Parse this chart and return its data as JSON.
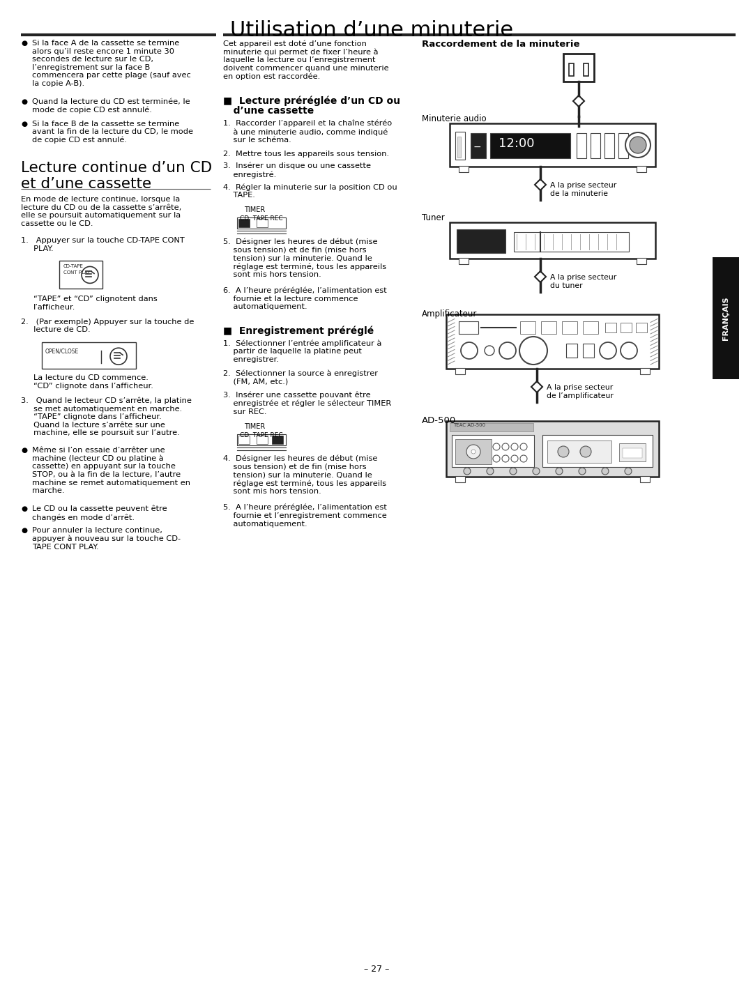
{
  "title": "Utilisation d’une minuterie",
  "page_number": "– 27 –",
  "bg_color": "#ffffff",
  "left_col_bullets_top": [
    "Si la face A de la cassette se termine\nalors qu’il reste encore 1 minute 30\nsecondes de lecture sur le CD,\nl’enregistrement sur la face B\ncommencera par cette plage (sauf avec\nla copie A-B).",
    "Quand la lecture du CD est terminée, le\nmode de copie CD est annulé.",
    "Si la face B de la cassette se termine\navant la fin de la lecture du CD, le mode\nde copie CD est annulé."
  ],
  "section1_title": "Lecture continue d’un CD\net d’une cassette",
  "section1_body": "En mode de lecture continue, lorsque la\nlecture du CD ou de la cassette s’arrête,\nelle se poursuit automatiquement sur la\ncassette ou le CD.",
  "section1_step1": "1.   Appuyer sur la touche CD-TAPE CONT\n     PLAY.",
  "section1_caption1": "“TAPE” et “CD” clignotent dans\nl’afficheur.",
  "section1_step2": "2.   (Par exemple) Appuyer sur la touche de\n     lecture de CD.",
  "section1_caption2": "La lecture du CD commence.\n“CD” clignote dans l’afficheur.",
  "section1_step3": "3.   Quand le lecteur CD s’arrête, la platine\n     se met automatiquement en marche.\n     “TAPE” clignote dans l’afficheur.\n     Quand la lecture s’arrête sur une\n     machine, elle se poursuit sur l’autre.",
  "section1_bullets2": [
    "Même si l’on essaie d’arrêter une\nmachine (lecteur CD ou platine à\ncassette) en appuyant sur la touche\nSTOP, ou à la fin de la lecture, l’autre\nmachine se remet automatiquement en\nmarche.",
    "Le CD ou la cassette peuvent être\nchangés en mode d’arrêt.",
    "Pour annuler la lecture continue,\nappuyer à nouveau sur la touche CD-\nTAPE CONT PLAY."
  ],
  "mid_col_intro": "Cet appareil est doté d’une fonction\nminuterie qui permet de fixer l’heure à\nlaquelle la lecture ou l’enregistrement\ndoivent commencer quand une minuterie\nen option est raccordée.",
  "section2_title_line1": "■  Lecture préréglée d’un CD ou",
  "section2_title_line2": "   d’une cassette",
  "section2_steps": [
    "1.  Raccorder l’appareil et la chaîne stéréo\n    à une minuterie audio, comme indiqué\n    sur le schéma.",
    "2.  Mettre tous les appareils sous tension.",
    "3.  Insérer un disque ou une cassette\n    enregistré.",
    "4.  Régler la minuterie sur la position CD ou\n    TAPE."
  ],
  "section2_steps_after": [
    "5.  Désigner les heures de début (mise\n    sous tension) et de fin (mise hors\n    tension) sur la minuterie. Quand le\n    réglage est terminé, tous les appareils\n    sont mis hors tension.",
    "6.  A l’heure préréglée, l’alimentation est\n    fournie et la lecture commence\n    automatiquement."
  ],
  "section3_title": "■  Enregistrement préréglé",
  "section3_steps": [
    "1.  Sélectionner l’entrée amplificateur à\n    partir de laquelle la platine peut\n    enregistrer.",
    "2.  Sélectionner la source à enregistrer\n    (FM, AM, etc.)",
    "3.  Insérer une cassette pouvant être\n    enregistrée et régler le sélecteur TIMER\n    sur REC."
  ],
  "section3_steps_after": [
    "4.  Désigner les heures de début (mise\n    sous tension) et de fin (mise hors\n    tension) sur la minuterie. Quand le\n    réglage est terminé, tous les appareils\n    sont mis hors tension.",
    "5.  A l’heure préréglée, l’alimentation est\n    fournie et l’enregistrement commence\n    automatiquement."
  ],
  "right_col_title": "Raccordement de la minuterie",
  "minuterie_label": "Minuterie audio",
  "tuner_label": "Tuner",
  "ampli_label": "Amplificateur",
  "ad500_label": "AD-500",
  "arrow1_label": "A la prise secteur\nde la minuterie",
  "arrow2_label": "A la prise secteur\ndu tuner",
  "arrow3_label": "A la prise secteur\nde l’amplificateur",
  "francais_label": "FRANÇAIS"
}
